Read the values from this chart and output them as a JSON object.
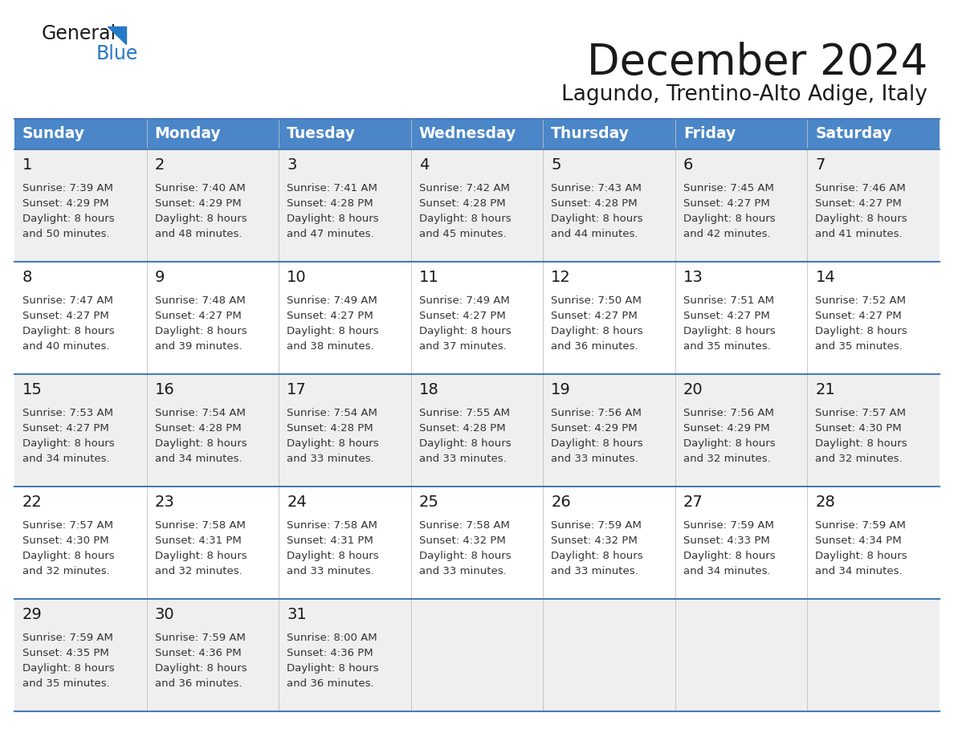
{
  "title": "December 2024",
  "subtitle": "Lagundo, Trentino-Alto Adige, Italy",
  "days_of_week": [
    "Sunday",
    "Monday",
    "Tuesday",
    "Wednesday",
    "Thursday",
    "Friday",
    "Saturday"
  ],
  "header_bg": "#4A86C8",
  "header_text": "#FFFFFF",
  "cell_bg_odd": "#EFEFEF",
  "cell_bg_even": "#FFFFFF",
  "row_line_color": "#4A7AB5",
  "text_color": "#333333",
  "day_num_color": "#1A1A1A",
  "logo_general_color": "#1A1A1A",
  "logo_blue_color": "#2878C8",
  "calendar": [
    [
      {
        "day": "1",
        "sunrise": "7:39 AM",
        "sunset": "4:29 PM",
        "dl_line3": "Daylight: 8 hours",
        "dl_line4": "and 50 minutes."
      },
      {
        "day": "2",
        "sunrise": "7:40 AM",
        "sunset": "4:29 PM",
        "dl_line3": "Daylight: 8 hours",
        "dl_line4": "and 48 minutes."
      },
      {
        "day": "3",
        "sunrise": "7:41 AM",
        "sunset": "4:28 PM",
        "dl_line3": "Daylight: 8 hours",
        "dl_line4": "and 47 minutes."
      },
      {
        "day": "4",
        "sunrise": "7:42 AM",
        "sunset": "4:28 PM",
        "dl_line3": "Daylight: 8 hours",
        "dl_line4": "and 45 minutes."
      },
      {
        "day": "5",
        "sunrise": "7:43 AM",
        "sunset": "4:28 PM",
        "dl_line3": "Daylight: 8 hours",
        "dl_line4": "and 44 minutes."
      },
      {
        "day": "6",
        "sunrise": "7:45 AM",
        "sunset": "4:27 PM",
        "dl_line3": "Daylight: 8 hours",
        "dl_line4": "and 42 minutes."
      },
      {
        "day": "7",
        "sunrise": "7:46 AM",
        "sunset": "4:27 PM",
        "dl_line3": "Daylight: 8 hours",
        "dl_line4": "and 41 minutes."
      }
    ],
    [
      {
        "day": "8",
        "sunrise": "7:47 AM",
        "sunset": "4:27 PM",
        "dl_line3": "Daylight: 8 hours",
        "dl_line4": "and 40 minutes."
      },
      {
        "day": "9",
        "sunrise": "7:48 AM",
        "sunset": "4:27 PM",
        "dl_line3": "Daylight: 8 hours",
        "dl_line4": "and 39 minutes."
      },
      {
        "day": "10",
        "sunrise": "7:49 AM",
        "sunset": "4:27 PM",
        "dl_line3": "Daylight: 8 hours",
        "dl_line4": "and 38 minutes."
      },
      {
        "day": "11",
        "sunrise": "7:49 AM",
        "sunset": "4:27 PM",
        "dl_line3": "Daylight: 8 hours",
        "dl_line4": "and 37 minutes."
      },
      {
        "day": "12",
        "sunrise": "7:50 AM",
        "sunset": "4:27 PM",
        "dl_line3": "Daylight: 8 hours",
        "dl_line4": "and 36 minutes."
      },
      {
        "day": "13",
        "sunrise": "7:51 AM",
        "sunset": "4:27 PM",
        "dl_line3": "Daylight: 8 hours",
        "dl_line4": "and 35 minutes."
      },
      {
        "day": "14",
        "sunrise": "7:52 AM",
        "sunset": "4:27 PM",
        "dl_line3": "Daylight: 8 hours",
        "dl_line4": "and 35 minutes."
      }
    ],
    [
      {
        "day": "15",
        "sunrise": "7:53 AM",
        "sunset": "4:27 PM",
        "dl_line3": "Daylight: 8 hours",
        "dl_line4": "and 34 minutes."
      },
      {
        "day": "16",
        "sunrise": "7:54 AM",
        "sunset": "4:28 PM",
        "dl_line3": "Daylight: 8 hours",
        "dl_line4": "and 34 minutes."
      },
      {
        "day": "17",
        "sunrise": "7:54 AM",
        "sunset": "4:28 PM",
        "dl_line3": "Daylight: 8 hours",
        "dl_line4": "and 33 minutes."
      },
      {
        "day": "18",
        "sunrise": "7:55 AM",
        "sunset": "4:28 PM",
        "dl_line3": "Daylight: 8 hours",
        "dl_line4": "and 33 minutes."
      },
      {
        "day": "19",
        "sunrise": "7:56 AM",
        "sunset": "4:29 PM",
        "dl_line3": "Daylight: 8 hours",
        "dl_line4": "and 33 minutes."
      },
      {
        "day": "20",
        "sunrise": "7:56 AM",
        "sunset": "4:29 PM",
        "dl_line3": "Daylight: 8 hours",
        "dl_line4": "and 32 minutes."
      },
      {
        "day": "21",
        "sunrise": "7:57 AM",
        "sunset": "4:30 PM",
        "dl_line3": "Daylight: 8 hours",
        "dl_line4": "and 32 minutes."
      }
    ],
    [
      {
        "day": "22",
        "sunrise": "7:57 AM",
        "sunset": "4:30 PM",
        "dl_line3": "Daylight: 8 hours",
        "dl_line4": "and 32 minutes."
      },
      {
        "day": "23",
        "sunrise": "7:58 AM",
        "sunset": "4:31 PM",
        "dl_line3": "Daylight: 8 hours",
        "dl_line4": "and 32 minutes."
      },
      {
        "day": "24",
        "sunrise": "7:58 AM",
        "sunset": "4:31 PM",
        "dl_line3": "Daylight: 8 hours",
        "dl_line4": "and 33 minutes."
      },
      {
        "day": "25",
        "sunrise": "7:58 AM",
        "sunset": "4:32 PM",
        "dl_line3": "Daylight: 8 hours",
        "dl_line4": "and 33 minutes."
      },
      {
        "day": "26",
        "sunrise": "7:59 AM",
        "sunset": "4:32 PM",
        "dl_line3": "Daylight: 8 hours",
        "dl_line4": "and 33 minutes."
      },
      {
        "day": "27",
        "sunrise": "7:59 AM",
        "sunset": "4:33 PM",
        "dl_line3": "Daylight: 8 hours",
        "dl_line4": "and 34 minutes."
      },
      {
        "day": "28",
        "sunrise": "7:59 AM",
        "sunset": "4:34 PM",
        "dl_line3": "Daylight: 8 hours",
        "dl_line4": "and 34 minutes."
      }
    ],
    [
      {
        "day": "29",
        "sunrise": "7:59 AM",
        "sunset": "4:35 PM",
        "dl_line3": "Daylight: 8 hours",
        "dl_line4": "and 35 minutes."
      },
      {
        "day": "30",
        "sunrise": "7:59 AM",
        "sunset": "4:36 PM",
        "dl_line3": "Daylight: 8 hours",
        "dl_line4": "and 36 minutes."
      },
      {
        "day": "31",
        "sunrise": "8:00 AM",
        "sunset": "4:36 PM",
        "dl_line3": "Daylight: 8 hours",
        "dl_line4": "and 36 minutes."
      },
      null,
      null,
      null,
      null
    ]
  ]
}
